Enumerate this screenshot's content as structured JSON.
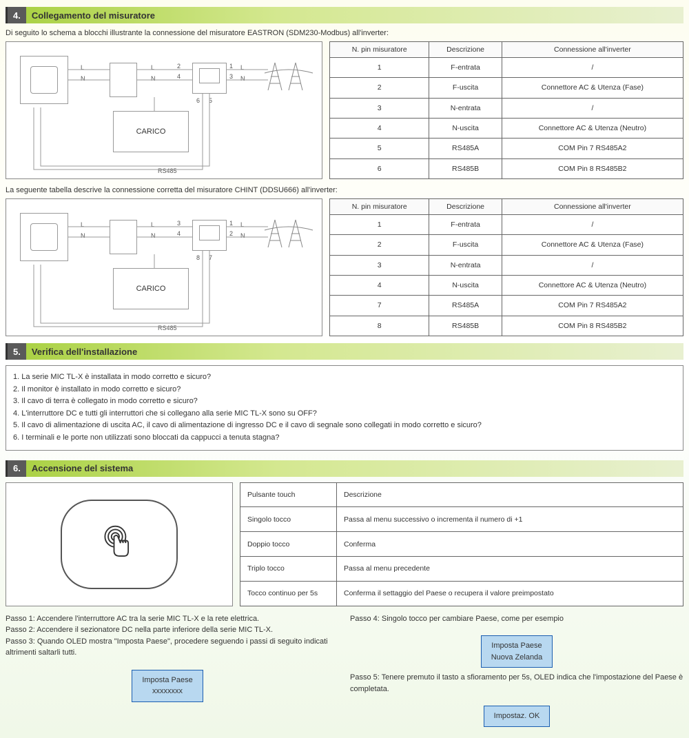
{
  "section4": {
    "number": "4.",
    "title": "Collegamento del misuratore",
    "intro1": "Di seguito lo schema a blocchi illustrante la connessione del misuratore EASTRON (SDM230-Modbus) all'inverter:",
    "intro2": "La seguente tabella descrive la connessione corretta del misuratore CHINT (DDSU666) all'inverter:",
    "table1": {
      "headers": [
        "N. pin misuratore",
        "Descrizione",
        "Connessione all'inverter"
      ],
      "rows": [
        [
          "1",
          "F-entrata",
          "/"
        ],
        [
          "2",
          "F-uscita",
          "Connettore AC & Utenza (Fase)"
        ],
        [
          "3",
          "N-entrata",
          "/"
        ],
        [
          "4",
          "N-uscita",
          "Connettore AC & Utenza (Neutro)"
        ],
        [
          "5",
          "RS485A",
          "COM Pin 7 RS485A2"
        ],
        [
          "6",
          "RS485B",
          "COM Pin 8 RS485B2"
        ]
      ]
    },
    "table2": {
      "headers": [
        "N. pin misuratore",
        "Descrizione",
        "Connessione all'inverter"
      ],
      "rows": [
        [
          "1",
          "F-entrata",
          "/"
        ],
        [
          "2",
          "F-uscita",
          "Connettore AC & Utenza (Fase)"
        ],
        [
          "3",
          "N-entrata",
          "/"
        ],
        [
          "4",
          "N-uscita",
          "Connettore AC & Utenza (Neutro)"
        ],
        [
          "7",
          "RS485A",
          "COM Pin 7 RS485A2"
        ],
        [
          "8",
          "RS485B",
          "COM Pin 8 RS485B2"
        ]
      ]
    },
    "diagram": {
      "carico": "CARICO",
      "rs485": "RS485",
      "L": "L",
      "N": "N"
    }
  },
  "section5": {
    "number": "5.",
    "title": "Verifica dell'installazione",
    "items": [
      "1. La serie MIC TL-X è installata in modo corretto e sicuro?",
      "2. Il monitor è installato in modo corretto e sicuro?",
      "3. Il cavo di terra è collegato in modo corretto e sicuro?",
      "4. L'interruttore DC e tutti gli interruttori che si collegano alla serie MIC TL-X sono su OFF?",
      "5. Il cavo di alimentazione di uscita AC, il cavo di alimentazione di ingresso DC e il cavo di segnale sono collegati in modo corretto e sicuro?",
      "6. I terminali e le porte non utilizzati sono bloccati da cappucci a tenuta stagna?"
    ]
  },
  "section6": {
    "number": "6.",
    "title": "Accensione del sistema",
    "touchTable": {
      "rows": [
        [
          "Pulsante touch",
          "Descrizione"
        ],
        [
          "Singolo tocco",
          "Passa al menu successivo o incrementa il numero di +1"
        ],
        [
          "Doppio tocco",
          "Conferma"
        ],
        [
          "Triplo tocco",
          "Passa al menu precedente"
        ],
        [
          "Tocco continuo per 5s",
          "Conferma il settaggio del Paese o recupera il valore preimpostato"
        ]
      ]
    },
    "stepsLeft": [
      "Passo 1: Accendere l'interruttore AC tra la serie MIC TL-X e la rete elettrica.",
      "Passo 2: Accendere il sezionatore DC nella parte inferiore della serie MIC TL-X.",
      "Passo 3: Quando OLED mostra \"Imposta Paese\", procedere seguendo i passi di seguito indicati altrimenti saltarli tutti."
    ],
    "stepsRight": [
      "Passo 4: Singolo tocco per cambiare Paese, come per esempio",
      "Passo 5: Tenere premuto il tasto a sfioramento per 5s, OLED indica che l'impostazione del Paese è completata."
    ],
    "box1": "Imposta Paese\nxxxxxxxx",
    "box2": "Imposta Paese\nNuova Zelanda",
    "box3": "Impostaz. OK"
  }
}
